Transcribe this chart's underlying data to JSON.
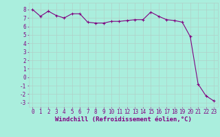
{
  "x": [
    0,
    1,
    2,
    3,
    4,
    5,
    6,
    7,
    8,
    9,
    10,
    11,
    12,
    13,
    14,
    15,
    16,
    17,
    18,
    19,
    20,
    21,
    22,
    23
  ],
  "y": [
    8.0,
    7.2,
    7.8,
    7.3,
    7.0,
    7.5,
    7.5,
    6.5,
    6.4,
    6.4,
    6.6,
    6.6,
    6.7,
    6.8,
    6.8,
    7.7,
    7.2,
    6.8,
    6.7,
    6.5,
    4.8,
    -0.8,
    -2.2,
    -2.8
  ],
  "line_color": "#800080",
  "marker": "+",
  "bg_color": "#aaeedd",
  "grid_color": "#b0d0c8",
  "xlabel": "Windchill (Refroidissement éolien,°C)",
  "tick_color": "#800080",
  "ylabel_ticks": [
    8,
    7,
    6,
    5,
    4,
    3,
    2,
    1,
    0,
    -1,
    -2,
    -3
  ],
  "xlim": [
    -0.5,
    23.5
  ],
  "ylim": [
    -3.5,
    8.8
  ],
  "xticks": [
    0,
    1,
    2,
    3,
    4,
    5,
    6,
    7,
    8,
    9,
    10,
    11,
    12,
    13,
    14,
    15,
    16,
    17,
    18,
    19,
    20,
    21,
    22,
    23
  ],
  "tick_fontsize": 5.5,
  "xlabel_fontsize": 6.5
}
